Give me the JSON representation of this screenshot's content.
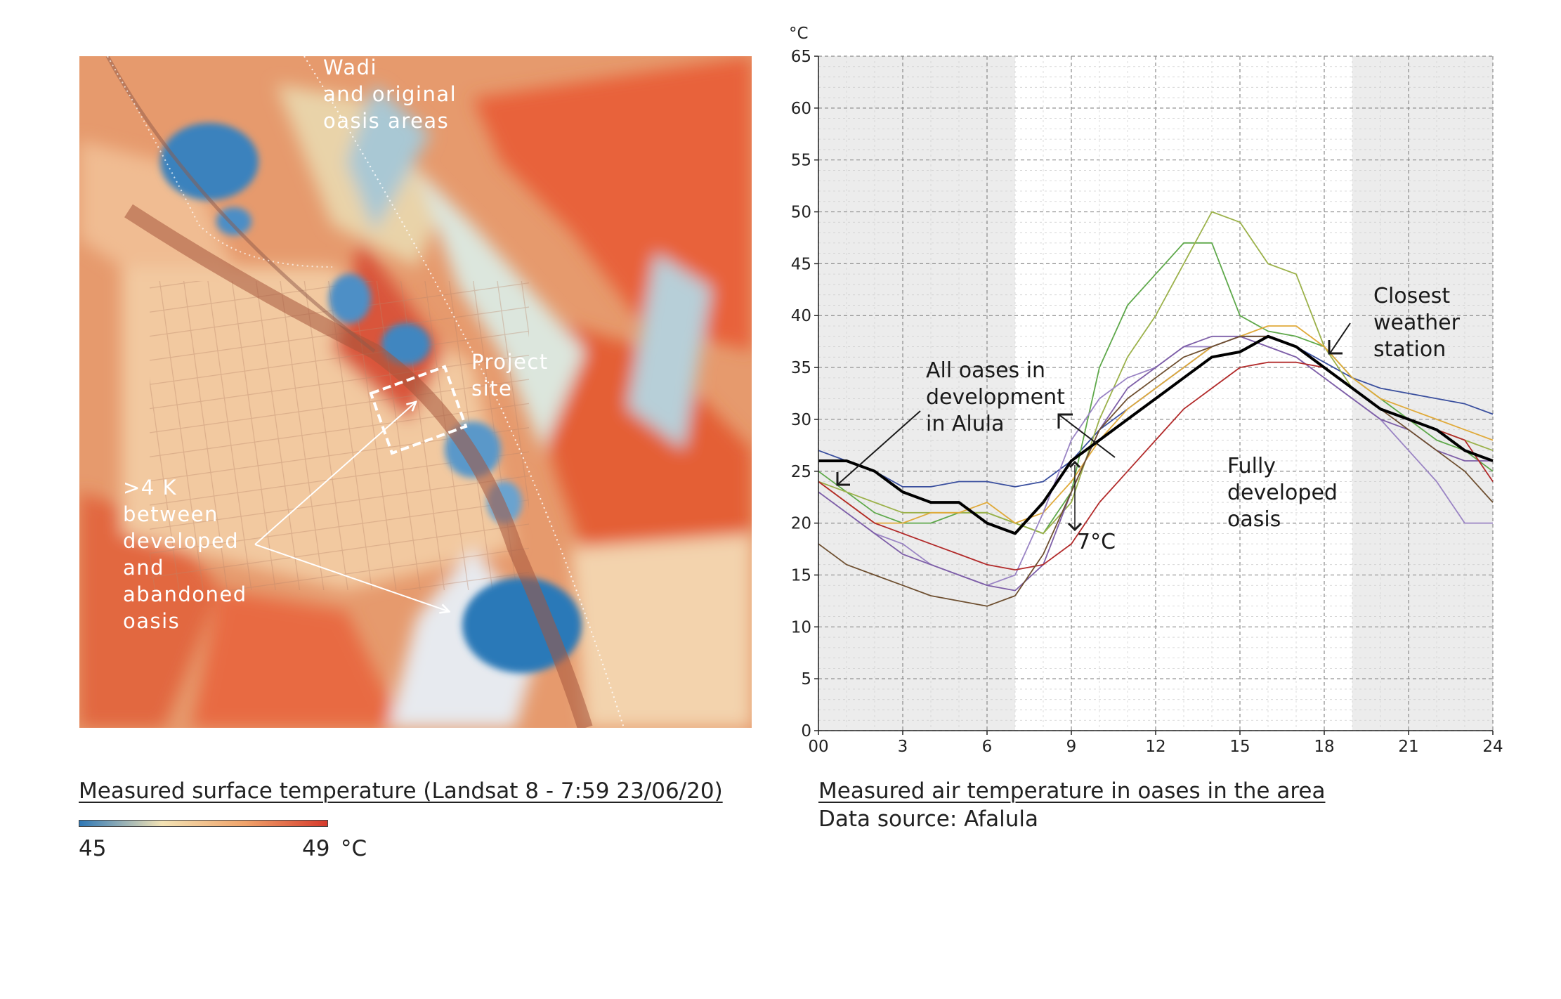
{
  "map": {
    "caption": "Measured surface temperature (Landsat 8 - 7:59 23/06/20)",
    "labels": {
      "wadi": [
        "Wadi",
        "and original",
        "oasis areas"
      ],
      "project": [
        "Project",
        "site"
      ],
      "delta": [
        ">4 K",
        "between",
        "developed",
        "and",
        "abandoned",
        "oasis"
      ]
    },
    "scale": {
      "min": "45",
      "max": "49",
      "unit": "°C",
      "colors": [
        "#2f78b6",
        "#f3e3b5",
        "#f0a36a",
        "#d63a2c"
      ]
    }
  },
  "chart_data": {
    "type": "line",
    "caption": "Measured air temperature in oases in the area",
    "source": "Data source: Afalula",
    "y_unit": "°C",
    "xlim": [
      0,
      24
    ],
    "ylim": [
      0,
      65
    ],
    "x_ticks": [
      "00",
      "3",
      "6",
      "9",
      "12",
      "15",
      "18",
      "21",
      "24"
    ],
    "y_ticks": [
      "0",
      "5",
      "10",
      "15",
      "20",
      "25",
      "30",
      "35",
      "40",
      "45",
      "50",
      "55",
      "60",
      "65"
    ],
    "shaded_night": [
      [
        0,
        7
      ],
      [
        19,
        24
      ]
    ],
    "grid": true,
    "series": [
      {
        "color": "#3a4f9e",
        "x": [
          0,
          1,
          2,
          3,
          4,
          5,
          6,
          7,
          8,
          9,
          10,
          11,
          12,
          13,
          14,
          15,
          16,
          17,
          18,
          19,
          20,
          21,
          22,
          23,
          24
        ],
        "y": [
          27,
          26,
          25,
          23.5,
          23.5,
          24,
          24,
          23.5,
          24,
          26,
          29,
          31,
          33,
          35,
          37,
          38,
          38,
          37,
          35.5,
          34,
          33,
          32.5,
          32,
          31.5,
          30.5
        ]
      },
      {
        "color": "#5ea84a",
        "x": [
          0,
          1,
          2,
          3,
          4,
          5,
          6,
          7,
          8,
          9,
          10,
          11,
          12,
          13,
          14,
          15,
          16,
          17,
          18,
          19,
          20,
          21,
          22,
          23,
          24
        ],
        "y": [
          25,
          23,
          21,
          20,
          20,
          21,
          21,
          20,
          19,
          23,
          35,
          41,
          44,
          47,
          47,
          40,
          38.5,
          38,
          37,
          34,
          32,
          30,
          28,
          27,
          25
        ]
      },
      {
        "color": "#9bb14a",
        "x": [
          0,
          1,
          2,
          3,
          4,
          5,
          6,
          7,
          8,
          9,
          10,
          11,
          12,
          13,
          14,
          15,
          16,
          17,
          18,
          19,
          20,
          21,
          22,
          23,
          24
        ],
        "y": [
          24,
          23,
          22,
          21,
          21,
          21,
          21,
          20,
          19,
          22,
          30,
          36,
          40,
          45,
          50,
          49,
          45,
          44,
          37,
          33,
          31,
          30,
          29,
          28,
          27
        ]
      },
      {
        "color": "#e0aa3a",
        "x": [
          0,
          1,
          2,
          3,
          4,
          5,
          6,
          7,
          8,
          9,
          10,
          11,
          12,
          13,
          14,
          15,
          16,
          17,
          18,
          19,
          20,
          21,
          22,
          23,
          24
        ],
        "y": [
          24,
          22,
          20,
          20,
          21,
          21,
          22,
          20,
          21,
          24,
          28,
          31,
          33,
          35,
          37,
          38,
          39,
          39,
          37,
          34,
          32,
          31,
          30,
          29,
          28
        ]
      },
      {
        "color": "#9a84c4",
        "x": [
          0,
          1,
          2,
          3,
          4,
          5,
          6,
          7,
          8,
          9,
          10,
          11,
          12,
          13,
          14,
          15,
          16,
          17,
          18,
          19,
          20,
          21,
          22,
          23,
          24
        ],
        "y": [
          23,
          21,
          19,
          18,
          16,
          15,
          14,
          15,
          21,
          28,
          32,
          34,
          35,
          37,
          37,
          38,
          37,
          36,
          34,
          32,
          30,
          27,
          24,
          20,
          20
        ]
      },
      {
        "color": "#7e5fa8",
        "x": [
          0,
          1,
          2,
          3,
          4,
          5,
          6,
          7,
          8,
          9,
          10,
          11,
          12,
          13,
          14,
          15,
          16,
          17,
          18,
          19,
          20,
          21,
          22,
          23,
          24
        ],
        "y": [
          23,
          21,
          19,
          17,
          16,
          15,
          14,
          13.5,
          16,
          23,
          29,
          33,
          35,
          37,
          38,
          38,
          37,
          36,
          34,
          32,
          30,
          29,
          27,
          26,
          26
        ]
      },
      {
        "color": "#b22a2a",
        "x": [
          0,
          1,
          2,
          3,
          4,
          5,
          6,
          7,
          8,
          9,
          10,
          11,
          12,
          13,
          14,
          15,
          16,
          17,
          18,
          19,
          20,
          21,
          22,
          23,
          24
        ],
        "y": [
          24,
          22,
          20,
          19,
          18,
          17,
          16,
          15.5,
          16,
          18,
          22,
          25,
          28,
          31,
          33,
          35,
          35.5,
          35.5,
          35,
          33,
          31,
          30,
          29,
          28,
          24
        ]
      },
      {
        "color": "#6e4f30",
        "x": [
          0,
          1,
          2,
          3,
          4,
          5,
          6,
          7,
          8,
          9,
          10,
          11,
          12,
          13,
          14,
          15,
          16,
          17,
          18,
          19,
          20,
          21,
          22,
          23,
          24
        ],
        "y": [
          18,
          16,
          15,
          14,
          13,
          12.5,
          12,
          13,
          17,
          23,
          29,
          32,
          34,
          36,
          37,
          38,
          38,
          37,
          35,
          33,
          31,
          29,
          27,
          25,
          22
        ]
      },
      {
        "color": "#000000",
        "thick": true,
        "x": [
          0,
          1,
          2,
          3,
          4,
          5,
          6,
          7,
          8,
          9,
          10,
          11,
          12,
          13,
          14,
          15,
          16,
          17,
          18,
          19,
          20,
          21,
          22,
          23,
          24
        ],
        "y": [
          26,
          26,
          25,
          23,
          22,
          22,
          20,
          19,
          22,
          26,
          28,
          30,
          32,
          34,
          36,
          36.5,
          38,
          37,
          35,
          33,
          31,
          30,
          29,
          27,
          26
        ]
      }
    ],
    "annotations": {
      "all_oases": [
        "All oases in",
        "development",
        "in Alula"
      ],
      "closest": [
        "Closest",
        "weather",
        "station"
      ],
      "fully": [
        "Fully",
        "developed",
        "oasis"
      ],
      "delta": "7°C"
    }
  }
}
